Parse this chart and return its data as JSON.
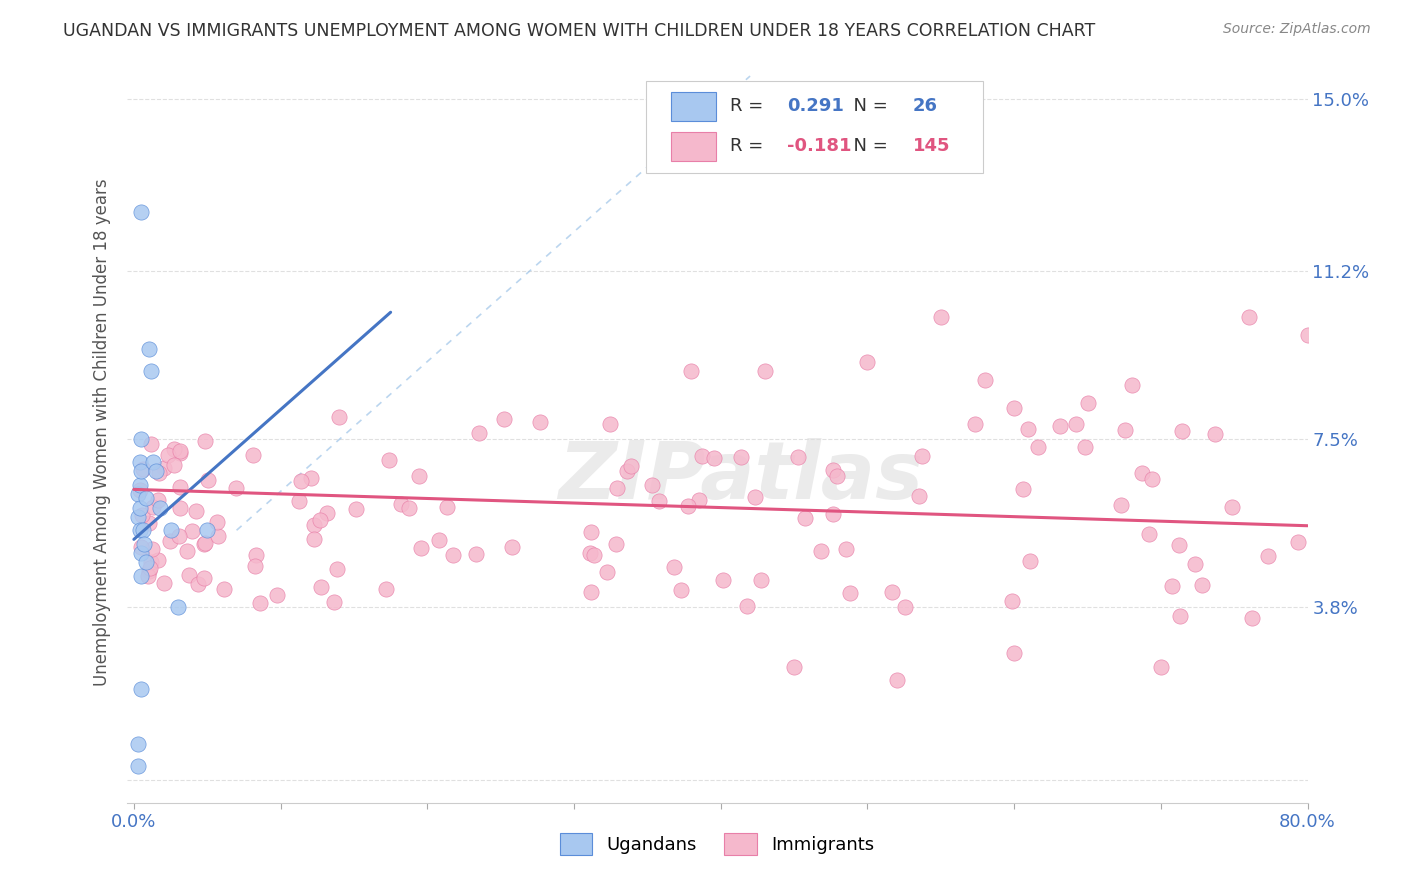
{
  "title": "UGANDAN VS IMMIGRANTS UNEMPLOYMENT AMONG WOMEN WITH CHILDREN UNDER 18 YEARS CORRELATION CHART",
  "source": "Source: ZipAtlas.com",
  "ylabel": "Unemployment Among Women with Children Under 18 years",
  "xlim": [
    -0.005,
    0.8
  ],
  "ylim": [
    -0.005,
    0.158
  ],
  "ytick_vals": [
    0.0,
    0.038,
    0.075,
    0.112,
    0.15
  ],
  "ytick_labels": [
    "",
    "3.8%",
    "7.5%",
    "11.2%",
    "15.0%"
  ],
  "xtick_vals": [
    0.0,
    0.1,
    0.2,
    0.3,
    0.4,
    0.5,
    0.6,
    0.7,
    0.8
  ],
  "xtick_labels": [
    "0.0%",
    "",
    "",
    "",
    "",
    "",
    "",
    "",
    "80.0%"
  ],
  "legend_ugandan_R": "0.291",
  "legend_ugandan_N": "26",
  "legend_immigrant_R": "-0.181",
  "legend_immigrant_N": "145",
  "ugandan_color": "#a8c8f0",
  "ugandan_edge": "#5b8dd9",
  "immigrant_color": "#f5b8cc",
  "immigrant_edge": "#e87fa8",
  "ugandan_line_color": "#4575c4",
  "ugandan_line_x": [
    0.0,
    0.175
  ],
  "ugandan_line_y": [
    0.053,
    0.103
  ],
  "immigrant_line_color": "#e05580",
  "immigrant_line_x": [
    0.0,
    0.8
  ],
  "immigrant_line_y": [
    0.064,
    0.056
  ],
  "diag_line_color": "#9ec4e8",
  "diag_line_x": [
    0.07,
    0.42
  ],
  "diag_line_y": [
    0.055,
    0.155
  ],
  "background_color": "#ffffff",
  "grid_color": "#dddddd",
  "watermark": "ZIPatlas"
}
